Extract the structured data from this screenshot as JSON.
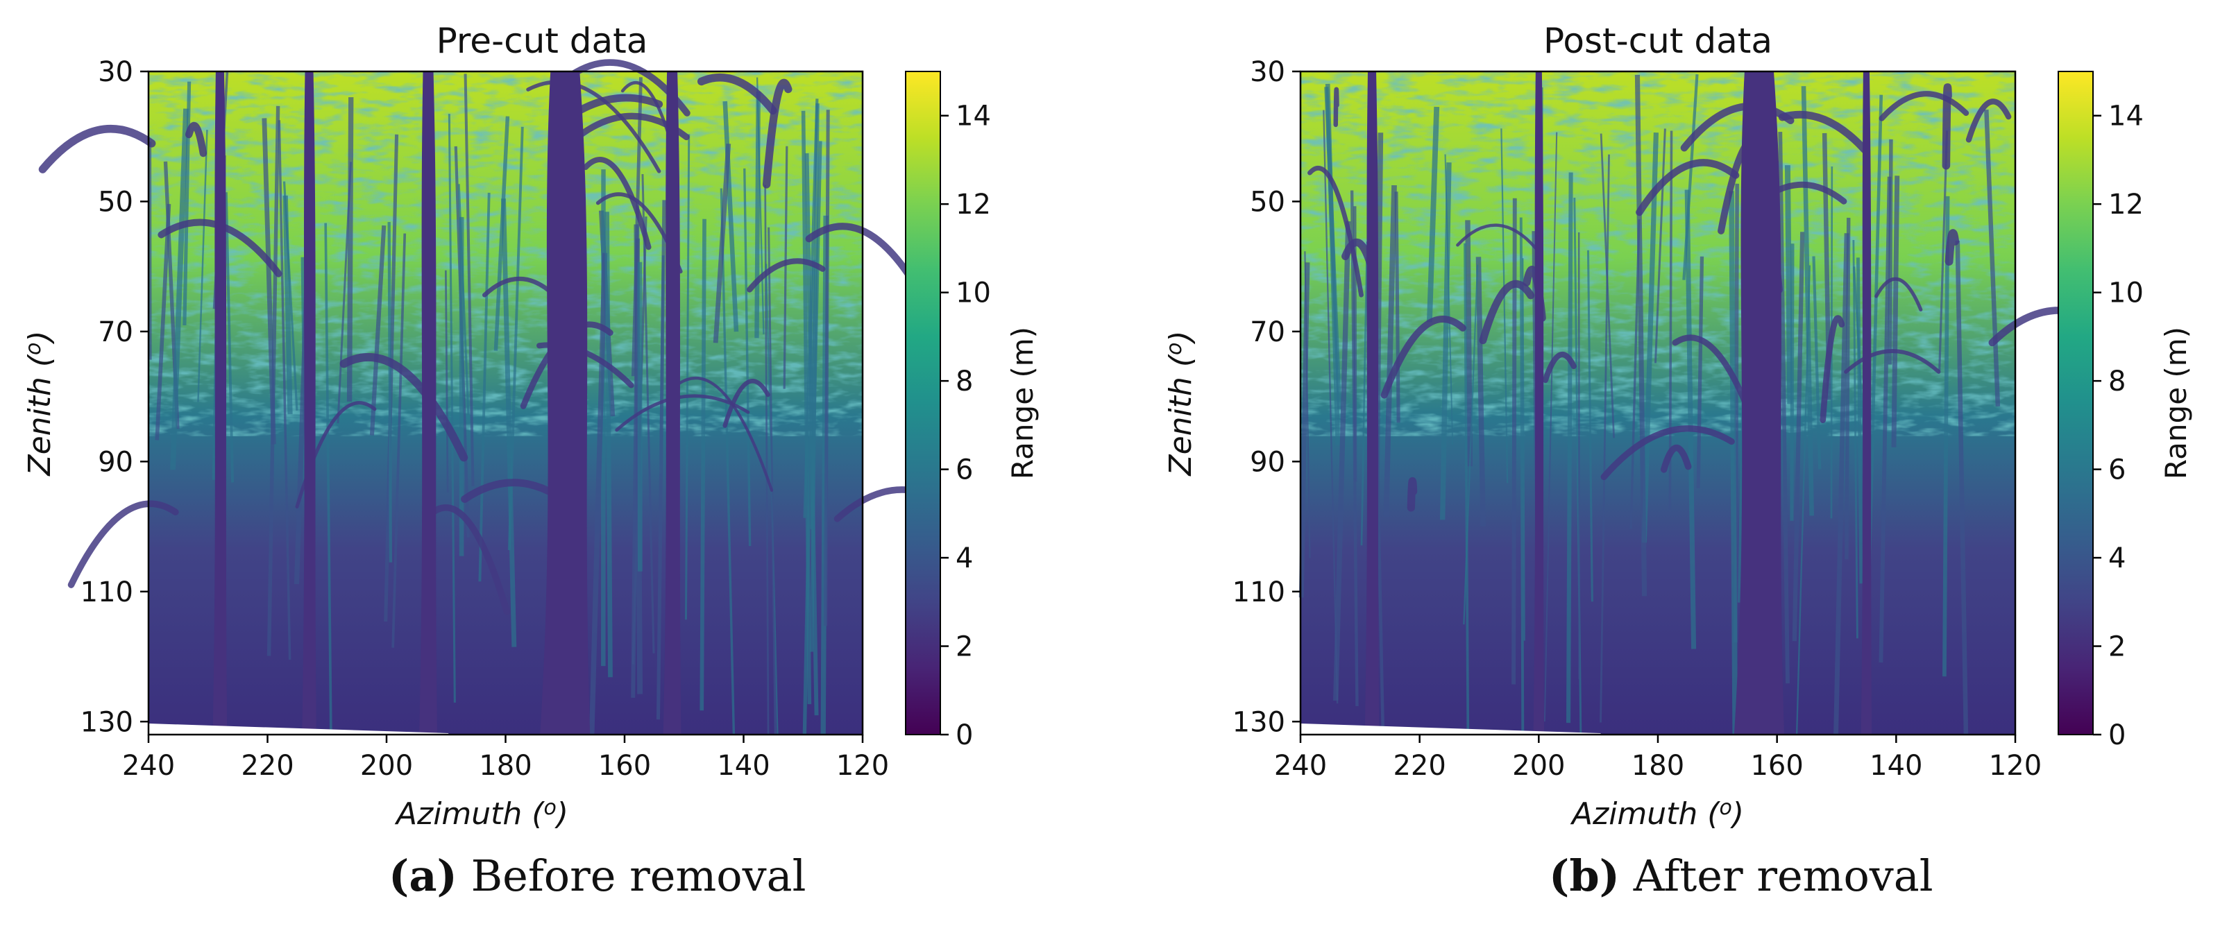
{
  "colors": {
    "viridis": [
      "#440154",
      "#482475",
      "#414487",
      "#355f8d",
      "#2a788e",
      "#21908d",
      "#22a884",
      "#42be71",
      "#7ad151",
      "#bddf26",
      "#fde725"
    ],
    "axis": "#000000",
    "text": "#111111"
  },
  "chart_data": [
    {
      "type": "heatmap",
      "title": "Pre-cut data",
      "xlabel": "Azimuth (°)",
      "xlabel_main": "Azimuth",
      "xlabel_unit": "o",
      "ylabel": "Zenith (°)",
      "ylabel_main": "Zenith",
      "ylabel_unit": "o",
      "xlim": [
        240,
        120
      ],
      "ylim": [
        30,
        132
      ],
      "xticks": [
        240,
        220,
        200,
        180,
        160,
        140,
        120
      ],
      "yticks": [
        30,
        50,
        70,
        90,
        110,
        130
      ],
      "colorbar": {
        "label": "Range (m)",
        "range": [
          0,
          15
        ],
        "ticks": [
          0,
          2,
          4,
          6,
          8,
          10,
          12,
          14
        ],
        "colormap": "viridis"
      },
      "trunks": [
        {
          "azimuth": 170,
          "width_deg": 7
        },
        {
          "azimuth": 193,
          "width_deg": 2.5
        },
        {
          "azimuth": 152,
          "width_deg": 2.5
        },
        {
          "azimuth": 213,
          "width_deg": 2
        },
        {
          "azimuth": 228,
          "width_deg": 2
        }
      ],
      "caption_label": "(a)",
      "caption_text": "Before removal"
    },
    {
      "type": "heatmap",
      "title": "Post-cut data",
      "xlabel": "Azimuth (°)",
      "xlabel_main": "Azimuth",
      "xlabel_unit": "o",
      "ylabel": "Zenith (°)",
      "ylabel_main": "Zenith",
      "ylabel_unit": "o",
      "xlim": [
        240,
        120
      ],
      "ylim": [
        30,
        132
      ],
      "xticks": [
        240,
        220,
        200,
        180,
        160,
        140,
        120
      ],
      "yticks": [
        30,
        50,
        70,
        90,
        110,
        130
      ],
      "colorbar": {
        "label": "Range (m)",
        "range": [
          0,
          15
        ],
        "ticks": [
          0,
          2,
          4,
          6,
          8,
          10,
          12,
          14
        ],
        "colormap": "viridis"
      },
      "trunks": [
        {
          "azimuth": 163,
          "width_deg": 7
        },
        {
          "azimuth": 228,
          "width_deg": 2
        },
        {
          "azimuth": 145,
          "width_deg": 1.5
        },
        {
          "azimuth": 200,
          "width_deg": 1.5
        }
      ],
      "caption_label": "(b)",
      "caption_text": "After removal"
    }
  ]
}
